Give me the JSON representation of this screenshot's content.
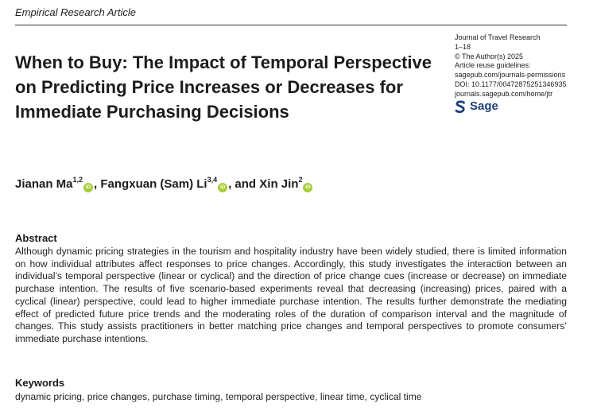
{
  "header": {
    "section_label": "Empirical Research Article"
  },
  "article": {
    "title": "When to Buy: The Impact of Temporal Perspective on Predicting Price Increases or Decreases for Immediate Purchasing Decisions"
  },
  "meta": {
    "journal": "Journal of Travel Research",
    "pages": "1–18",
    "copyright": "© The Author(s) 2025",
    "reuse_label": "Article reuse guidelines:",
    "reuse_url": "sagepub.com/journals-permissions",
    "doi": "DOI: 10.1177/00472875251346935",
    "journal_url": "journals.sagepub.com/home/jtr",
    "publisher": "Sage"
  },
  "authors": [
    {
      "name": "Jianan Ma",
      "affiliation": "1,2",
      "separator": ", "
    },
    {
      "name": "Fangxuan (Sam) Li",
      "affiliation": "3,4",
      "separator": ", and "
    },
    {
      "name": "Xin Jin",
      "affiliation": "2",
      "separator": ""
    }
  ],
  "orcid_badge": "iD",
  "orcid_color": "#a6ce39",
  "publisher_color": "#1f3f7a",
  "abstract": {
    "heading": "Abstract",
    "text": "Although dynamic pricing strategies in the tourism and hospitality industry have been widely studied, there is limited information on how individual attributes affect responses to price changes. Accordingly, this study investigates the interaction between an individual’s temporal perspective (linear or cyclical) and the direction of price change cues (increase or decrease) on immediate purchase intention. The results of five scenario-based experiments reveal that decreasing (increasing) prices, paired with a cyclical (linear) perspective, could lead to higher immediate purchase intention. The results further demonstrate the mediating effect of predicted future price trends and the moderating roles of the duration of comparison interval and the magnitude of changes. This study assists practitioners in better matching price changes and temporal perspectives to promote consumers’ immediate purchase intentions."
  },
  "keywords": {
    "heading": "Keywords",
    "text": "dynamic pricing, price changes, purchase timing, temporal perspective, linear time, cyclical time"
  }
}
